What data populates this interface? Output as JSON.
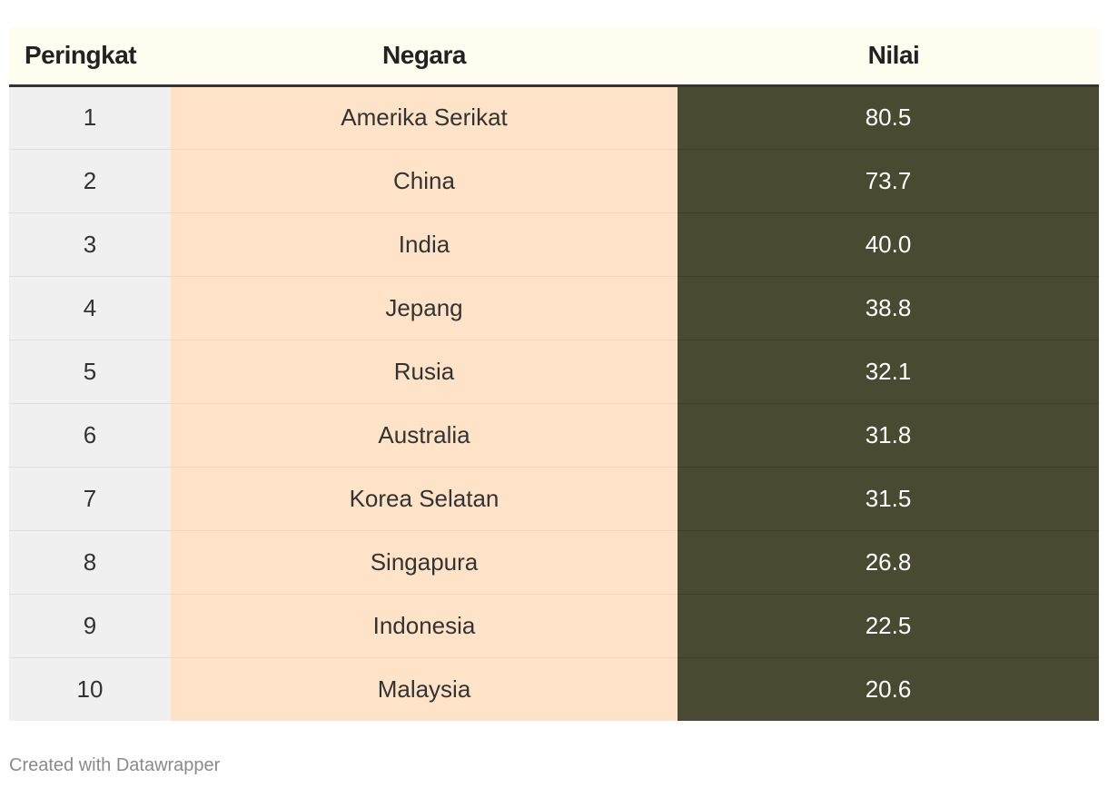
{
  "chart_data": {
    "type": "table",
    "columns": [
      "Peringkat",
      "Negara",
      "Nilai"
    ],
    "rows": [
      {
        "rank": "1",
        "country": "Amerika Serikat",
        "value": "80.5"
      },
      {
        "rank": "2",
        "country": "China",
        "value": "73.7"
      },
      {
        "rank": "3",
        "country": "India",
        "value": "40.0"
      },
      {
        "rank": "4",
        "country": "Jepang",
        "value": "38.8"
      },
      {
        "rank": "5",
        "country": "Rusia",
        "value": "32.1"
      },
      {
        "rank": "6",
        "country": "Australia",
        "value": "31.8"
      },
      {
        "rank": "7",
        "country": "Korea Selatan",
        "value": "31.5"
      },
      {
        "rank": "8",
        "country": "Singapura",
        "value": "26.8"
      },
      {
        "rank": "9",
        "country": "Indonesia",
        "value": "22.5"
      },
      {
        "rank": "10",
        "country": "Malaysia",
        "value": "20.6"
      }
    ],
    "colors": {
      "header_background": "#fffdf0",
      "rank_column": "#f0f0f0",
      "country_column": "#ffe3c8",
      "value_column": "#4a4a33"
    }
  },
  "footer": {
    "credit": "Created with Datawrapper"
  }
}
